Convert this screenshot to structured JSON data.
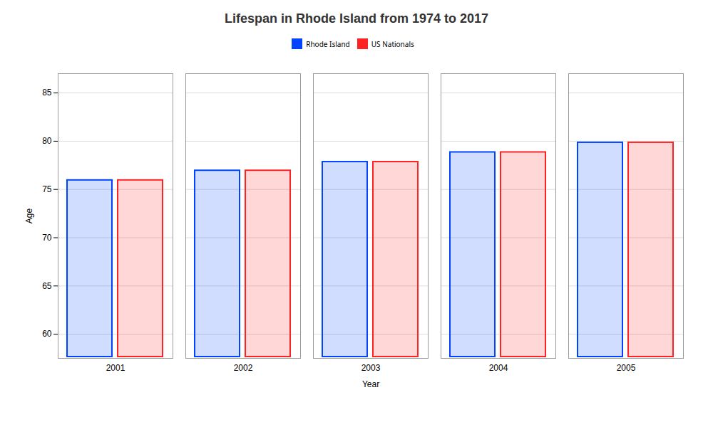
{
  "chart_data": {
    "type": "bar",
    "title": "Lifespan in Rhode Island from 1974 to 2017",
    "xlabel": "Year",
    "ylabel": "Age",
    "categories": [
      "2001",
      "2002",
      "2003",
      "2004",
      "2005"
    ],
    "series": [
      {
        "name": "Rhode Island",
        "color": "#0044ff",
        "values": [
          76.1,
          77.1,
          78.0,
          79.0,
          80.0
        ]
      },
      {
        "name": "US Nationals",
        "color": "#ff2222",
        "values": [
          76.1,
          77.1,
          78.0,
          79.0,
          80.0
        ]
      }
    ],
    "ylim": [
      57.5,
      87
    ],
    "yticks": [
      60,
      65,
      70,
      75,
      80,
      85
    ],
    "grid": true,
    "legend": "top"
  }
}
